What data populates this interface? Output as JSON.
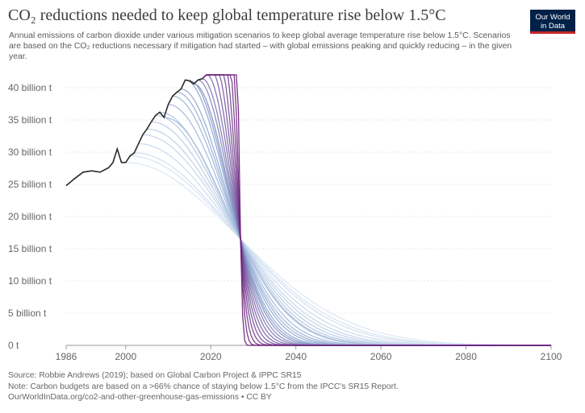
{
  "header": {
    "title": "CO₂ reductions needed to keep global temperature rise below 1.5°C",
    "subtitle": "Annual emissions of carbon dioxide under various mitigation scenarios to keep global average temperature rise below 1.5°C. Scenarios are based on the CO₂ reductions necessary if mitigation had started – with global emissions peaking and quickly reducing – in the given year.",
    "logo_line1": "Our World",
    "logo_line2": "in Data"
  },
  "footer": {
    "source": "Source: Robbie Andrews (2019); based on Global Carbon Project & IPPC SR15",
    "note": "Note: Carbon budgets are based on a >66% chance of staying below 1.5°C from the IPCC's SR15 Report.",
    "url": "OurWorldInData.org/co2-and-other-greenhouse-gas-emissions • CC BY"
  },
  "colors": {
    "historical": "#2b2b2b",
    "early_scenario": "#dbe7f4",
    "mid_scenario": "#8aa4cf",
    "late_scenario": "#6a1a78",
    "grid": "#d9d9d9",
    "logo_bg": "#002147",
    "logo_accent": "#c62828"
  },
  "chart_data": {
    "type": "line",
    "title": "CO₂ reductions needed to keep global temperature rise below 1.5°C",
    "xlabel": "",
    "ylabel": "",
    "xlim": [
      1986,
      2100
    ],
    "ylim": [
      0,
      42
    ],
    "grid": "horizontal dotted",
    "legend": "none",
    "x_ticks": [
      1986,
      2000,
      2020,
      2040,
      2060,
      2080,
      2100
    ],
    "y_ticks": [
      {
        "value": 0,
        "label": "0 t"
      },
      {
        "value": 5,
        "label": "5 billion t"
      },
      {
        "value": 10,
        "label": "10 billion t"
      },
      {
        "value": 15,
        "label": "15 billion t"
      },
      {
        "value": 20,
        "label": "20 billion t"
      },
      {
        "value": 25,
        "label": "25 billion t"
      },
      {
        "value": 30,
        "label": "30 billion t"
      },
      {
        "value": 35,
        "label": "35 billion t"
      },
      {
        "value": 40,
        "label": "40 billion t"
      }
    ],
    "historical": {
      "x": [
        1986,
        1988,
        1990,
        1992,
        1994,
        1996,
        1997,
        1998,
        1999,
        2000,
        2001,
        2002,
        2003,
        2004,
        2005,
        2006,
        2007,
        2008,
        2009,
        2010,
        2011,
        2012,
        2013,
        2014,
        2015,
        2016,
        2017,
        2018
      ],
      "y": [
        24.8,
        25.9,
        26.9,
        27.1,
        26.9,
        27.6,
        28.4,
        30.5,
        28.4,
        28.4,
        29.4,
        29.9,
        31.3,
        32.7,
        33.6,
        34.7,
        35.7,
        36.2,
        35.4,
        37.4,
        38.7,
        39.3,
        39.8,
        41.2,
        41.1,
        40.6,
        41.2,
        41.4
      ]
    },
    "scenarios": {
      "start_years": [
        2000,
        2001,
        2002,
        2003,
        2004,
        2005,
        2006,
        2007,
        2008,
        2009,
        2010,
        2011,
        2012,
        2013,
        2014,
        2015,
        2016,
        2017,
        2018,
        2019,
        2020,
        2021,
        2022,
        2023,
        2024,
        2025,
        2026
      ],
      "crossing_point": {
        "x": 2027,
        "y": 16.5
      },
      "note": "Each scenario peaks in its start year and declines toward zero by about 2100; later starts fall more steeply, all curves crossing near 2027."
    }
  }
}
